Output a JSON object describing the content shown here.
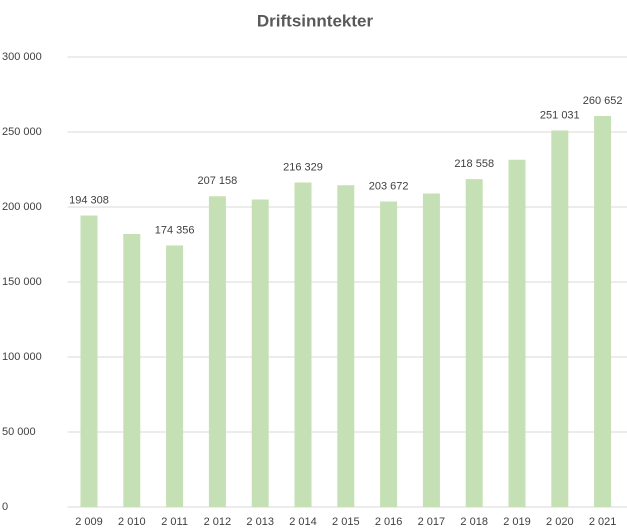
{
  "chart_data": {
    "type": "bar",
    "title": "Driftsinntekter",
    "categories": [
      "2 009",
      "2 010",
      "2 011",
      "2 012",
      "2 013",
      "2 014",
      "2 015",
      "2 016",
      "2 017",
      "2 018",
      "2 019",
      "2 020",
      "2 021"
    ],
    "values": [
      194308,
      182000,
      174356,
      207158,
      205000,
      216329,
      214500,
      203672,
      209000,
      218558,
      231500,
      251031,
      260652
    ],
    "value_labels": [
      "194 308",
      null,
      "174 356",
      "207 158",
      null,
      "216 329",
      null,
      "203 672",
      null,
      "218 558",
      null,
      "251 031",
      "260 652"
    ],
    "color": "#c5e0b4",
    "ylim": [
      0,
      300000
    ],
    "yticks": [
      0,
      {
        "value": 50000,
        "label": "50 000"
      },
      {
        "value": 100000,
        "label": "100 000"
      },
      {
        "value": 150000,
        "label": "150 000"
      },
      {
        "value": 200000,
        "label": "200 000"
      },
      {
        "value": 250000,
        "label": "250 000"
      },
      {
        "value": 300000,
        "label": "300 000"
      }
    ],
    "grid": true
  }
}
